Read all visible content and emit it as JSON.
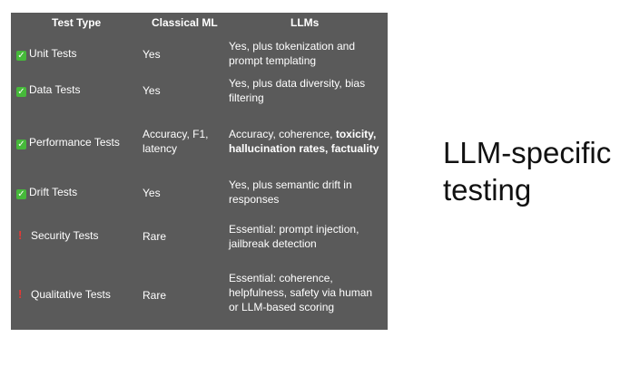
{
  "slide": {
    "heading_line1": "LLM-specific",
    "heading_line2": "testing"
  },
  "table": {
    "headers": [
      "Test Type",
      "Classical ML",
      "LLMs"
    ],
    "rows": [
      {
        "icon": "check-icon",
        "test_type": "Unit Tests",
        "classical": "Yes",
        "llm_line1": "Yes, plus tokenization and",
        "llm_line2": "prompt templating"
      },
      {
        "icon": "check-icon",
        "test_type": "Data Tests",
        "classical": "Yes",
        "llm_line1": "Yes, plus data diversity, bias",
        "llm_line2": "filtering"
      },
      {
        "icon": "check-icon",
        "test_type": "Performance Tests",
        "classical_line1": "Accuracy, F1,",
        "classical_line2": "latency",
        "llm_line1_plain": "Accuracy, coherence, ",
        "llm_line1_bold": "toxicity,",
        "llm_line2_bold": "hallucination rates, factuality"
      },
      {
        "icon": "check-icon",
        "test_type": "Drift Tests",
        "classical": "Yes",
        "llm_line1": "Yes, plus semantic drift in",
        "llm_line2": "responses"
      },
      {
        "icon": "exclamation-icon",
        "test_type": "Security Tests",
        "classical": "Rare",
        "llm_line1": "Essential: prompt injection,",
        "llm_line2": "jailbreak detection"
      },
      {
        "icon": "exclamation-icon",
        "test_type": "Qualitative Tests",
        "classical": "Rare",
        "llm_line1": "Essential: coherence,",
        "llm_line2": "helpfulness, safety via human",
        "llm_line3": "or LLM-based scoring"
      }
    ]
  },
  "colors": {
    "panel_bg": "#5a5a5a",
    "check_green": "#46b93a",
    "alert_red": "#e53935"
  }
}
